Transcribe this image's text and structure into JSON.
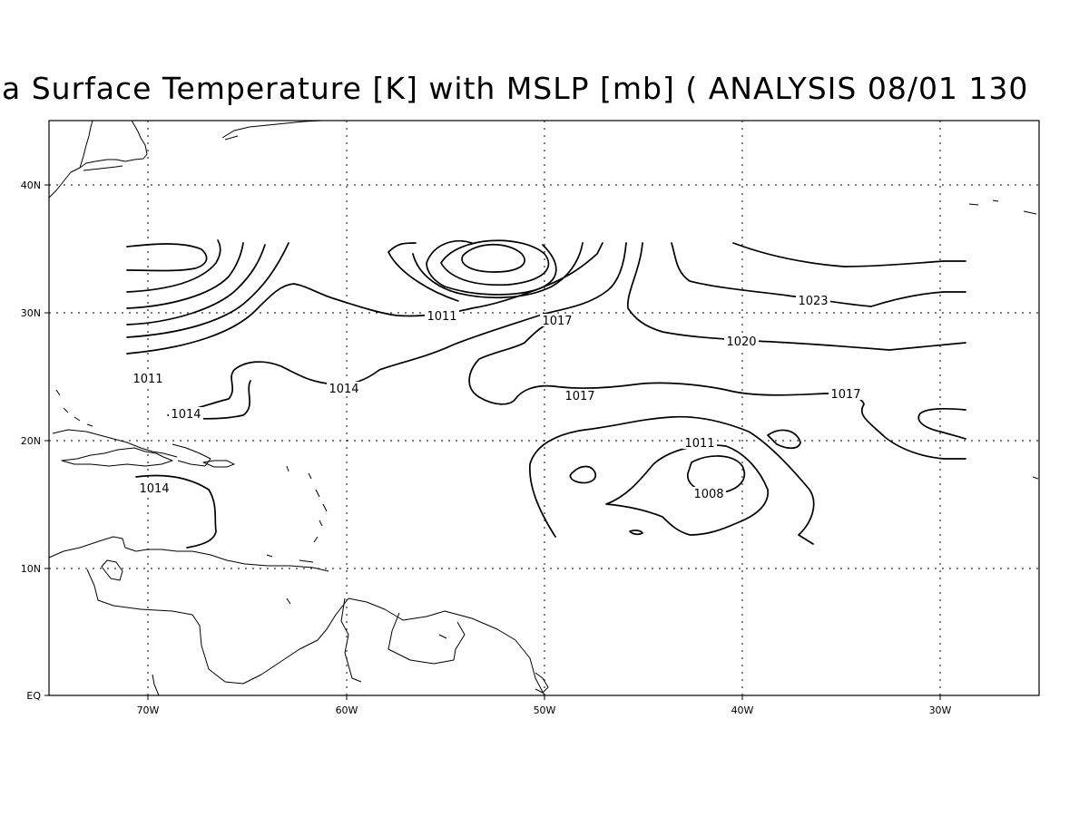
{
  "title": "a Surface Temperature [K] with MSLP [mb] ( ANALYSIS 08/01 130",
  "axes": {
    "x_ticks": [
      "70W",
      "60W",
      "50W",
      "40W",
      "30W"
    ],
    "y_ticks": [
      "40N",
      "30N",
      "20N",
      "10N",
      "EQ"
    ]
  },
  "contour_labels": [
    {
      "text": "1011"
    },
    {
      "text": "1011"
    },
    {
      "text": "1011"
    },
    {
      "text": "1014"
    },
    {
      "text": "1014"
    },
    {
      "text": "1014"
    },
    {
      "text": "1017"
    },
    {
      "text": "1017"
    },
    {
      "text": "1017"
    },
    {
      "text": "1020"
    },
    {
      "text": "1023"
    },
    {
      "text": "1008"
    }
  ]
}
